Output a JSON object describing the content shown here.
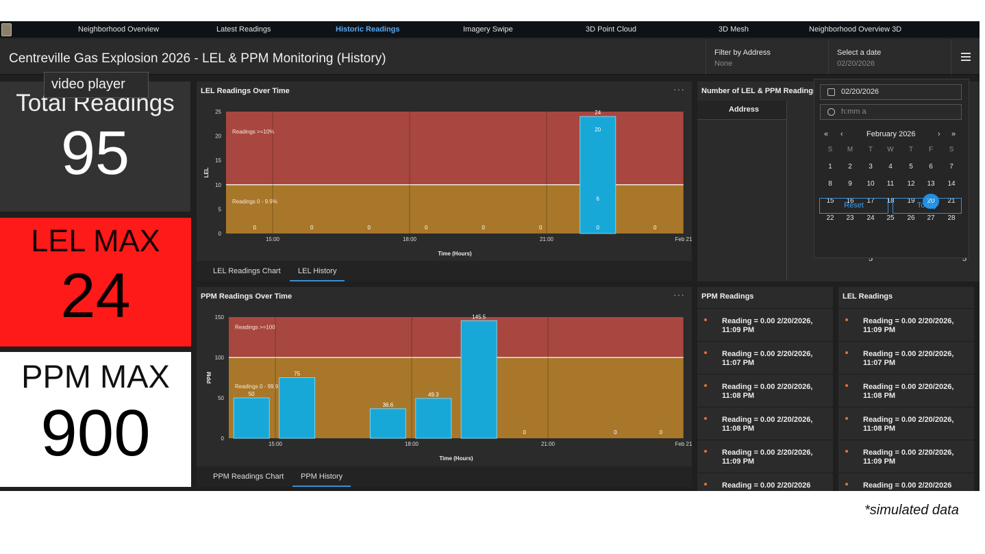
{
  "nav": {
    "items": [
      {
        "label": "Neighborhood Overview"
      },
      {
        "label": "Latest Readings"
      },
      {
        "label": "Historic Readings"
      },
      {
        "label": "Imagery Swipe"
      },
      {
        "label": "3D Point Cloud"
      },
      {
        "label": "3D Mesh"
      },
      {
        "label": "Neighborhood Overview 3D"
      }
    ],
    "active_index": 2
  },
  "header": {
    "title": "Centreville Gas Explosion 2026 - LEL & PPM Monitoring (History)",
    "filter_label": "Filter by Address",
    "filter_value": "None",
    "date_label": "Select a date",
    "date_value": "02/20/2026"
  },
  "overlay": {
    "label": "video player"
  },
  "stats": {
    "total": {
      "title": "Total Readings",
      "value": "95"
    },
    "lel": {
      "title": "LEL MAX",
      "value": "24"
    },
    "ppm": {
      "title": "PPM MAX",
      "value": "900"
    }
  },
  "lel_panel": {
    "title": "LEL Readings Over Time",
    "tabs": [
      "LEL Readings Chart",
      "LEL History"
    ],
    "active_tab": 1
  },
  "ppm_panel": {
    "title": "PPM Readings Over Time",
    "tabs": [
      "PPM Readings Chart",
      "PPM History"
    ],
    "active_tab": 1
  },
  "chart_data": [
    {
      "type": "bar",
      "xlabel": "Time (Hours)",
      "ylabel": "LEL",
      "ylim": [
        0,
        25
      ],
      "yticks": [
        0,
        5,
        10,
        15,
        20,
        25
      ],
      "xticks": [
        "15:00",
        "18:00",
        "21:00",
        "Feb 21"
      ],
      "zones": [
        {
          "label": "Readings >=10%",
          "from": 10,
          "to": 25,
          "color": "#a8473f"
        },
        {
          "label": "Readings 0 - 9.9%",
          "from": 0,
          "to": 10,
          "color": "#a9772a"
        }
      ],
      "bars": [
        {
          "value": 0
        },
        {
          "value": 0
        },
        {
          "value": 0
        },
        {
          "value": 0
        },
        {
          "value": 0
        },
        {
          "value": 0
        },
        {
          "value": 24,
          "inner_labels": [
            "20",
            "6",
            "0"
          ]
        },
        {
          "value": 0
        }
      ],
      "bar_color": "#17a8d8",
      "grid": true
    },
    {
      "type": "bar",
      "xlabel": "Time (Hours)",
      "ylabel": "PPM",
      "ylim": [
        0,
        150
      ],
      "yticks": [
        0,
        50,
        100,
        150
      ],
      "xticks": [
        "15:00",
        "18:00",
        "21:00",
        "Feb 21"
      ],
      "zones": [
        {
          "label": "Readings >=100",
          "from": 100,
          "to": 150,
          "color": "#a8473f"
        },
        {
          "label": "Readings 0 - 99.9",
          "from": 0,
          "to": 100,
          "color": "#a9772a"
        }
      ],
      "bars": [
        {
          "value": 50
        },
        {
          "value": 75
        },
        {
          "value": null
        },
        {
          "value": 36.6
        },
        {
          "value": 49.3
        },
        {
          "value": 145.5
        },
        {
          "value": 0
        },
        {
          "value": null
        },
        {
          "value": 0
        },
        {
          "value": 0
        }
      ],
      "bar_color": "#17a8d8",
      "grid": true
    }
  ],
  "table_panel": {
    "title": "Number of LEL & PPM Readings b",
    "column": "Address",
    "visible_values": [
      "5",
      "5"
    ]
  },
  "calendar": {
    "date_input": "02/20/2026",
    "time_placeholder": "h:mm a",
    "month": "February 2026",
    "weekdays": [
      "S",
      "M",
      "T",
      "W",
      "T",
      "F",
      "S"
    ],
    "weeks": [
      [
        "1",
        "2",
        "3",
        "4",
        "5",
        "6",
        "7"
      ],
      [
        "8",
        "9",
        "10",
        "11",
        "12",
        "13",
        "14"
      ],
      [
        "15",
        "16",
        "17",
        "18",
        "19",
        "20",
        "21"
      ],
      [
        "22",
        "23",
        "24",
        "25",
        "26",
        "27",
        "28"
      ]
    ],
    "selected": "20",
    "reset_label": "Reset",
    "today_label": "Today",
    "nav": {
      "first": "«",
      "prev": "‹",
      "next": "›",
      "last": "»"
    }
  },
  "ppm_list": {
    "title": "PPM Readings",
    "items": [
      "Reading = 0.00 2/20/2026, 11:09 PM",
      "Reading = 0.00 2/20/2026, 11:07 PM",
      "Reading = 0.00 2/20/2026, 11:08 PM",
      "Reading = 0.00 2/20/2026, 11:08 PM",
      "Reading = 0.00 2/20/2026, 11:09 PM",
      "Reading = 0.00 2/20/2026"
    ]
  },
  "lel_list": {
    "title": "LEL Readings",
    "items": [
      "Reading = 0.00 2/20/2026, 11:09 PM",
      "Reading = 0.00 2/20/2026, 11:07 PM",
      "Reading = 0.00 2/20/2026, 11:08 PM",
      "Reading = 0.00 2/20/2026, 11:08 PM",
      "Reading = 0.00 2/20/2026, 11:09 PM",
      "Reading = 0.00 2/20/2026"
    ]
  },
  "footnote": "*simulated data",
  "colors": {
    "accent": "#3a8fd6",
    "lel_max_bg": "#ff1a1a",
    "bar": "#17a8d8"
  }
}
